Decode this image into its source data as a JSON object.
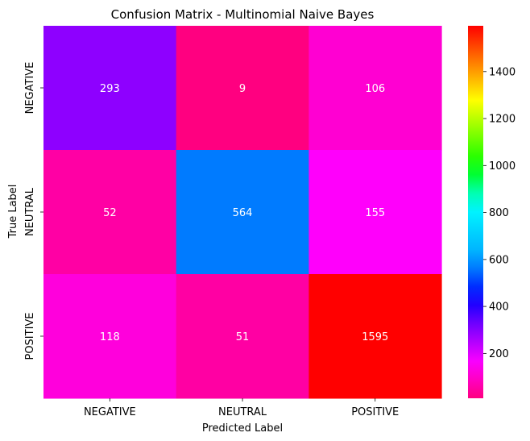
{
  "chart_data": {
    "type": "heatmap",
    "title": "Confusion Matrix - Multinomial Naive Bayes",
    "xlabel": "Predicted Label",
    "ylabel": "True Label",
    "x_categories": [
      "NEGATIVE",
      "NEUTRAL",
      "POSITIVE"
    ],
    "y_categories": [
      "NEGATIVE",
      "NEUTRAL",
      "POSITIVE"
    ],
    "values": [
      [
        293,
        9,
        106
      ],
      [
        52,
        564,
        155
      ],
      [
        118,
        51,
        1595
      ]
    ],
    "colormap": "gist_rainbow_r",
    "colorbar": {
      "range": [
        9,
        1595
      ],
      "ticks": [
        200,
        400,
        600,
        800,
        1000,
        1200,
        1400
      ]
    },
    "annotation_color": "#ffffff"
  }
}
